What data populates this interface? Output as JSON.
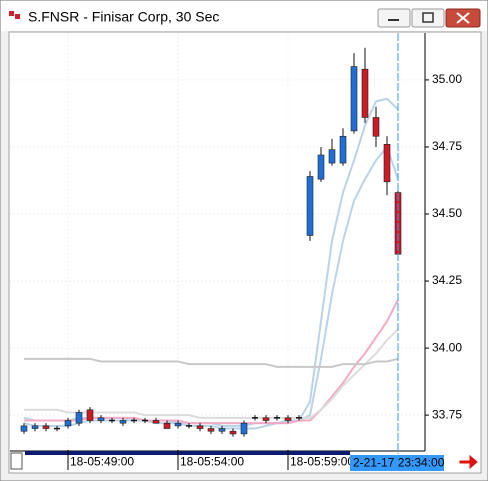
{
  "window": {
    "title": "S.FNSR - Finisar Corp, 30 Sec",
    "cursor_label": "2-21-17 23:34:00"
  },
  "chart_data": {
    "type": "candlestick",
    "open": [
      33.69,
      33.7,
      33.71,
      33.7,
      33.71,
      33.72,
      33.77,
      33.73,
      33.73,
      33.72,
      33.73,
      33.73,
      33.73,
      33.72,
      33.71,
      33.71,
      33.71,
      33.7,
      33.69,
      33.69,
      33.68,
      33.74,
      33.74,
      33.74,
      33.74,
      33.74,
      34.42,
      34.63,
      34.69,
      34.69,
      34.81,
      35.04,
      34.86,
      34.76,
      34.58
    ],
    "high": [
      33.72,
      33.72,
      33.72,
      33.71,
      33.74,
      33.77,
      33.78,
      33.75,
      33.74,
      33.74,
      33.74,
      33.74,
      33.74,
      33.73,
      33.73,
      33.72,
      33.72,
      33.71,
      33.71,
      33.7,
      33.73,
      33.75,
      33.75,
      33.75,
      33.75,
      33.75,
      34.66,
      34.75,
      34.78,
      34.82,
      35.1,
      35.12,
      34.9,
      34.79,
      34.59
    ],
    "low": [
      33.68,
      33.69,
      33.69,
      33.69,
      33.7,
      33.71,
      33.72,
      33.72,
      33.72,
      33.71,
      33.72,
      33.72,
      33.72,
      33.7,
      33.7,
      33.7,
      33.69,
      33.68,
      33.68,
      33.67,
      33.67,
      33.73,
      33.72,
      33.73,
      33.72,
      33.73,
      34.4,
      34.62,
      34.68,
      34.68,
      34.8,
      34.84,
      34.75,
      34.57,
      34.33
    ],
    "close": [
      33.71,
      33.71,
      33.7,
      33.7,
      33.73,
      33.76,
      33.73,
      33.74,
      33.73,
      33.73,
      33.73,
      33.73,
      33.72,
      33.7,
      33.72,
      33.71,
      33.7,
      33.69,
      33.7,
      33.68,
      33.72,
      33.74,
      33.73,
      33.74,
      33.73,
      33.74,
      34.64,
      34.72,
      34.74,
      34.79,
      35.05,
      34.86,
      34.79,
      34.62,
      34.35
    ],
    "up_color": "#1f6fd6",
    "down_color": "#cc1b24",
    "series": [
      {
        "color": "#b9d3ea",
        "values": [
          33.74,
          33.73,
          33.73,
          33.73,
          33.73,
          33.74,
          33.74,
          33.74,
          33.74,
          33.74,
          33.73,
          33.73,
          33.73,
          33.73,
          33.72,
          33.72,
          33.72,
          33.72,
          33.71,
          33.71,
          33.71,
          33.72,
          33.72,
          33.72,
          33.73,
          33.73,
          33.8,
          34.1,
          34.4,
          34.58,
          34.7,
          34.83,
          34.92,
          34.93,
          34.89
        ]
      },
      {
        "color": "#b9d3ea",
        "values": [
          33.72,
          33.71,
          33.71,
          33.71,
          33.71,
          33.72,
          33.73,
          33.73,
          33.73,
          33.73,
          33.73,
          33.73,
          33.72,
          33.72,
          33.72,
          33.71,
          33.71,
          33.71,
          33.7,
          33.7,
          33.7,
          33.7,
          33.71,
          33.72,
          33.72,
          33.73,
          33.75,
          33.96,
          34.2,
          34.4,
          34.55,
          34.63,
          34.7,
          34.75,
          34.63
        ]
      },
      {
        "color": "#f4a9c4",
        "values": [
          33.73,
          33.73,
          33.73,
          33.73,
          33.73,
          33.73,
          33.74,
          33.74,
          33.74,
          33.74,
          33.74,
          33.73,
          33.73,
          33.73,
          33.73,
          33.72,
          33.72,
          33.72,
          33.72,
          33.72,
          33.72,
          33.72,
          33.72,
          33.72,
          33.72,
          33.73,
          33.73,
          33.77,
          33.82,
          33.87,
          33.93,
          33.98,
          34.04,
          34.1,
          34.18
        ]
      },
      {
        "color": "#dcdcdc",
        "values": [
          33.77,
          33.77,
          33.77,
          33.77,
          33.76,
          33.76,
          33.76,
          33.76,
          33.76,
          33.76,
          33.76,
          33.75,
          33.75,
          33.75,
          33.75,
          33.75,
          33.74,
          33.74,
          33.74,
          33.74,
          33.74,
          33.74,
          33.74,
          33.74,
          33.74,
          33.74,
          33.74,
          33.77,
          33.81,
          33.86,
          33.9,
          33.94,
          33.98,
          34.03,
          34.07
        ]
      },
      {
        "color": "#c8c8c8",
        "values": [
          33.96,
          33.96,
          33.96,
          33.96,
          33.96,
          33.96,
          33.96,
          33.95,
          33.95,
          33.95,
          33.95,
          33.95,
          33.95,
          33.95,
          33.95,
          33.94,
          33.94,
          33.94,
          33.94,
          33.94,
          33.94,
          33.94,
          33.94,
          33.93,
          33.93,
          33.93,
          33.93,
          33.93,
          33.93,
          33.94,
          33.94,
          33.94,
          33.95,
          33.95,
          33.96
        ]
      }
    ],
    "ylim": [
      33.62,
      35.175
    ],
    "yticks": [
      {
        "value": 35,
        "label": "35.00"
      },
      34.75,
      {
        "value": 34.5,
        "label": "34.50"
      },
      34.25,
      {
        "value": 34,
        "label": "34.00"
      },
      33.75
    ],
    "xticks": [
      {
        "value": 4,
        "label": "18-05:49:00"
      },
      {
        "value": 14,
        "label": "18-05:54:00"
      },
      {
        "value": 24,
        "label": "18-05:59:00"
      }
    ],
    "grid": true
  }
}
